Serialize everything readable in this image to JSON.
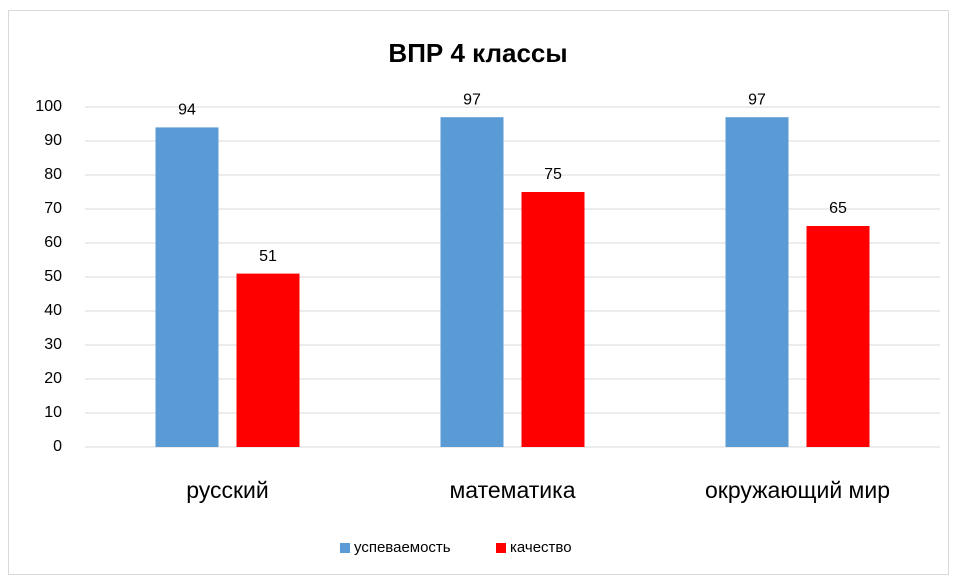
{
  "chart_data": {
    "type": "bar",
    "title": "ВПР 4 классы",
    "categories": [
      "русский",
      "математика",
      "окружающий мир"
    ],
    "series": [
      {
        "name": "успеваемость",
        "color": "#5b9bd5",
        "values": [
          94,
          97,
          97
        ]
      },
      {
        "name": "качество",
        "color": "#ff0000",
        "values": [
          51,
          75,
          65
        ]
      }
    ],
    "ylim": [
      0,
      100
    ],
    "yticks": [
      0,
      10,
      20,
      30,
      40,
      50,
      60,
      70,
      80,
      90,
      100
    ],
    "grid": true,
    "legend": "bottom"
  }
}
